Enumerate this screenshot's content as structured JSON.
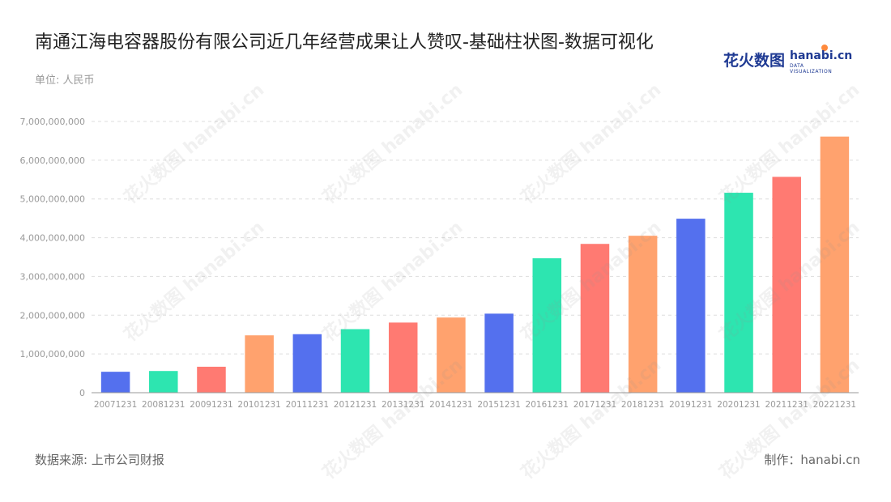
{
  "header": {
    "title": "南通江海电容器股份有限公司近几年经营成果让人赞叹-基础柱状图-数据可视化",
    "unit_label": "单位: 人民币"
  },
  "logo": {
    "text_zh": "花火数图",
    "text_en": "hanabi.cn",
    "subtitle": "DATA VISUALIZATION"
  },
  "footer": {
    "source": "数据来源: 上市公司财报",
    "maker": "制作：hanabi.cn"
  },
  "chart_data": {
    "type": "bar",
    "categories": [
      "20071231",
      "20081231",
      "20091231",
      "20101231",
      "20111231",
      "20121231",
      "20131231",
      "20141231",
      "20151231",
      "20161231",
      "20171231",
      "20181231",
      "20191231",
      "20201231",
      "20211231",
      "20221231"
    ],
    "values": [
      540000000,
      560000000,
      670000000,
      1480000000,
      1510000000,
      1640000000,
      1810000000,
      1940000000,
      2040000000,
      3470000000,
      3840000000,
      4050000000,
      4490000000,
      5160000000,
      5570000000,
      6610000000
    ],
    "ylim": [
      0,
      7000000000
    ],
    "yticks": [
      0,
      1000000000,
      2000000000,
      3000000000,
      4000000000,
      5000000000,
      6000000000,
      7000000000
    ],
    "ytick_labels": [
      "0",
      "1,000,000,000",
      "2,000,000,000",
      "3,000,000,000",
      "4,000,000,000",
      "5,000,000,000",
      "6,000,000,000",
      "7,000,000,000"
    ],
    "palette": [
      "#5470ee",
      "#2de5b0",
      "#ff7a72",
      "#ffa26e"
    ],
    "grid": true,
    "legend": "none"
  }
}
